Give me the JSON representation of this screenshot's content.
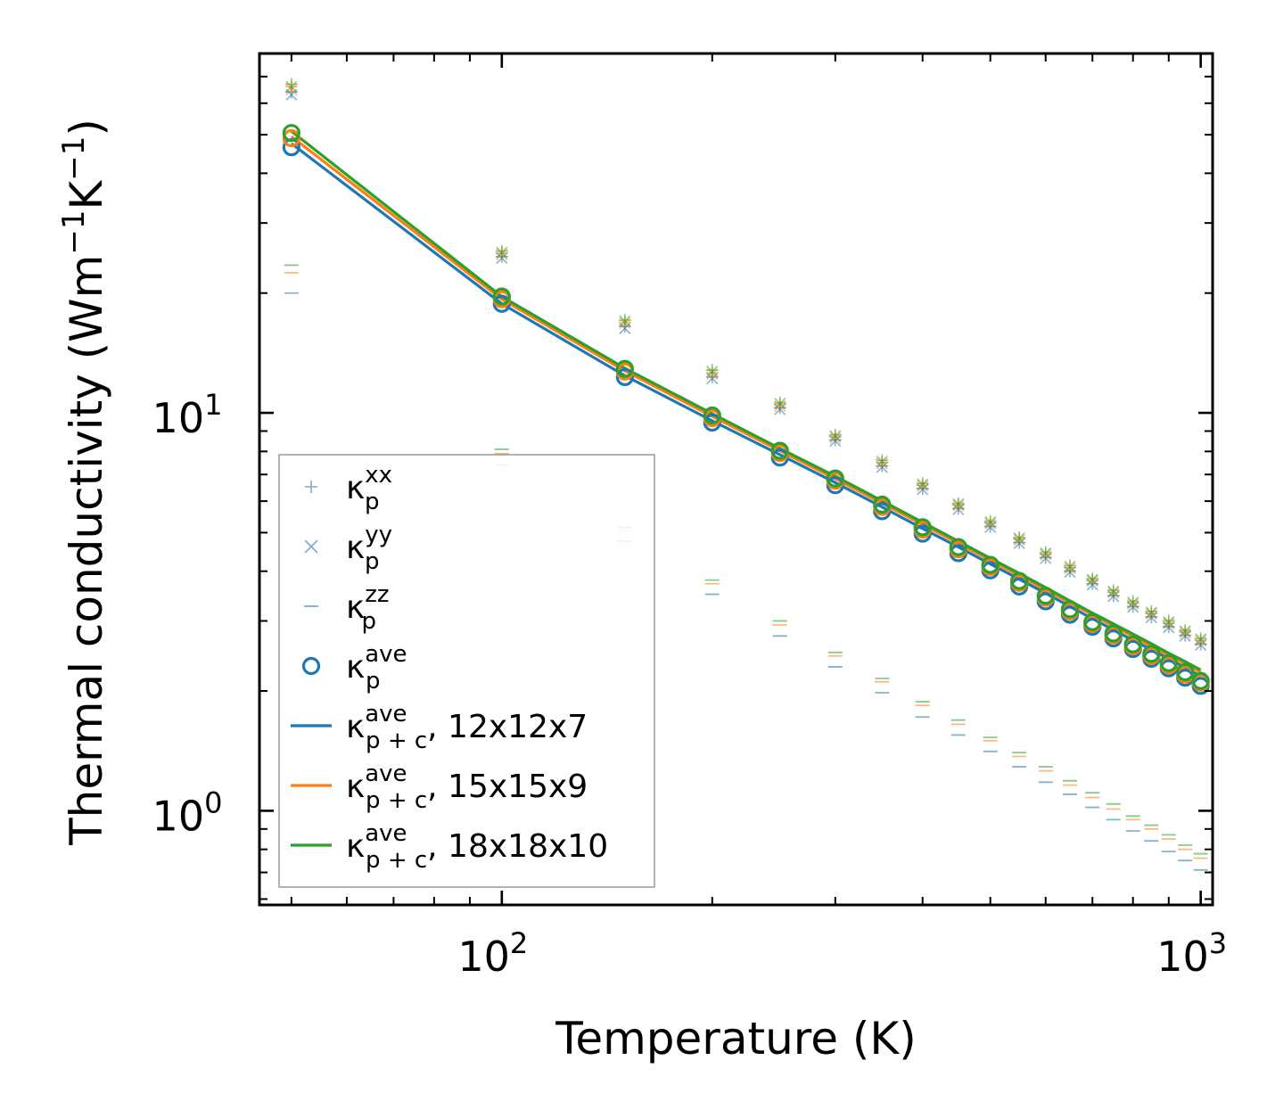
{
  "chart_data": {
    "type": "scatter",
    "xscale": "log",
    "yscale": "log",
    "xlim": [
      45,
      1040
    ],
    "ylim": [
      0.58,
      80
    ],
    "xlabel": "Temperature (K)",
    "ylabel": {
      "base": "Thermal conductivity (Wm",
      "exp1": "−1",
      "mid": "K",
      "exp2": "−1",
      "end": ")"
    },
    "x_major_ticks": [
      {
        "value": 100,
        "base": "10",
        "exp": "2"
      },
      {
        "value": 1000,
        "base": "10",
        "exp": "3"
      }
    ],
    "y_major_ticks": [
      {
        "value": 1,
        "base": "10",
        "exp": "0"
      },
      {
        "value": 10,
        "base": "10",
        "exp": "1"
      }
    ],
    "x": [
      50,
      100,
      150,
      200,
      250,
      300,
      350,
      400,
      450,
      500,
      550,
      600,
      650,
      700,
      750,
      800,
      850,
      900,
      950,
      1000
    ],
    "colors": {
      "blue": "#1f77b4",
      "orange": "#ff7f0e",
      "green": "#2ca02c",
      "frame": "#000000"
    },
    "series": [
      {
        "name": "kxx 12x12x7",
        "role": "kxx",
        "color": "#1f77b4",
        "values": [
          64,
          24.7,
          16.5,
          12.3,
          10.3,
          8.55,
          7.35,
          6.45,
          5.75,
          5.18,
          4.72,
          4.33,
          4.0,
          3.72,
          3.47,
          3.26,
          3.07,
          2.9,
          2.76,
          2.62
        ]
      },
      {
        "name": "kxx 15x15x9",
        "role": "kxx",
        "color": "#ff7f0e",
        "values": [
          66,
          25.2,
          16.9,
          12.6,
          10.5,
          8.7,
          7.5,
          6.58,
          5.86,
          5.28,
          4.81,
          4.41,
          4.08,
          3.79,
          3.54,
          3.32,
          3.13,
          2.96,
          2.81,
          2.68
        ]
      },
      {
        "name": "kxx 18x18x10",
        "role": "kxx",
        "color": "#2ca02c",
        "values": [
          67,
          25.5,
          17.1,
          12.8,
          10.6,
          8.8,
          7.6,
          6.65,
          5.92,
          5.34,
          4.86,
          4.46,
          4.13,
          3.83,
          3.58,
          3.36,
          3.17,
          3.0,
          2.84,
          2.71
        ]
      },
      {
        "name": "kyy 12x12x7",
        "role": "kyy",
        "color": "#1f77b4",
        "values": [
          63,
          24.5,
          16.3,
          12.2,
          10.2,
          8.5,
          7.3,
          6.42,
          5.72,
          5.16,
          4.7,
          4.31,
          3.98,
          3.7,
          3.46,
          3.25,
          3.06,
          2.89,
          2.75,
          2.61
        ]
      },
      {
        "name": "kyy 15x15x9",
        "role": "kyy",
        "color": "#ff7f0e",
        "values": [
          65,
          25.0,
          16.8,
          12.5,
          10.4,
          8.65,
          7.45,
          6.55,
          5.84,
          5.26,
          4.79,
          4.4,
          4.06,
          3.78,
          3.53,
          3.31,
          3.12,
          2.95,
          2.8,
          2.67
        ]
      },
      {
        "name": "kyy 18x18x10",
        "role": "kyy",
        "color": "#2ca02c",
        "values": [
          66,
          25.3,
          17.0,
          12.7,
          10.55,
          8.75,
          7.55,
          6.62,
          5.9,
          5.32,
          4.84,
          4.44,
          4.11,
          3.81,
          3.56,
          3.34,
          3.15,
          2.98,
          2.83,
          2.7
        ]
      },
      {
        "name": "kzz 12x12x7",
        "role": "kzz",
        "color": "#1f77b4",
        "values": [
          20.0,
          7.4,
          4.75,
          3.5,
          2.75,
          2.3,
          1.98,
          1.72,
          1.55,
          1.41,
          1.29,
          1.18,
          1.1,
          1.02,
          0.95,
          0.89,
          0.84,
          0.79,
          0.75,
          0.71
        ]
      },
      {
        "name": "kzz 15x15x9",
        "role": "kzz",
        "color": "#ff7f0e",
        "values": [
          22.5,
          7.9,
          5.05,
          3.72,
          2.93,
          2.45,
          2.11,
          1.84,
          1.65,
          1.5,
          1.37,
          1.26,
          1.16,
          1.08,
          1.01,
          0.95,
          0.9,
          0.85,
          0.8,
          0.76
        ]
      },
      {
        "name": "kzz 18x18x10",
        "role": "kzz",
        "color": "#2ca02c",
        "values": [
          23.5,
          8.1,
          5.15,
          3.8,
          3.0,
          2.5,
          2.15,
          1.88,
          1.69,
          1.53,
          1.4,
          1.29,
          1.19,
          1.11,
          1.04,
          0.97,
          0.92,
          0.87,
          0.82,
          0.78
        ]
      },
      {
        "name": "kave 12x12x7",
        "role": "kave",
        "color": "#1f77b4",
        "values": [
          46.5,
          18.8,
          12.3,
          9.45,
          7.72,
          6.58,
          5.66,
          4.97,
          4.44,
          4.02,
          3.66,
          3.36,
          3.11,
          2.9,
          2.71,
          2.55,
          2.41,
          2.28,
          2.16,
          2.06
        ]
      },
      {
        "name": "kave 15x15x9",
        "role": "kave",
        "color": "#ff7f0e",
        "values": [
          49.0,
          19.3,
          12.7,
          9.7,
          7.92,
          6.75,
          5.8,
          5.09,
          4.54,
          4.1,
          3.74,
          3.43,
          3.17,
          2.95,
          2.76,
          2.59,
          2.45,
          2.32,
          2.2,
          2.1
        ]
      },
      {
        "name": "kave 18x18x10",
        "role": "kave",
        "color": "#2ca02c",
        "values": [
          50.5,
          19.6,
          12.9,
          9.85,
          8.03,
          6.84,
          5.88,
          5.16,
          4.6,
          4.15,
          3.78,
          3.47,
          3.21,
          2.98,
          2.79,
          2.62,
          2.48,
          2.35,
          2.23,
          2.12
        ]
      },
      {
        "name": "kp+c ave 12x12x7",
        "role": "line",
        "color": "#1f77b4",
        "values": [
          47.5,
          18.8,
          12.4,
          9.55,
          7.85,
          6.68,
          5.8,
          5.12,
          4.6,
          4.17,
          3.82,
          3.52,
          3.26,
          3.04,
          2.85,
          2.68,
          2.54,
          2.41,
          2.29,
          2.18
        ]
      },
      {
        "name": "kp+c ave 15x15x9",
        "role": "line",
        "color": "#ff7f0e",
        "values": [
          49.5,
          19.3,
          12.75,
          9.8,
          8.03,
          6.83,
          5.93,
          5.24,
          4.7,
          4.26,
          3.9,
          3.59,
          3.33,
          3.11,
          2.91,
          2.74,
          2.59,
          2.46,
          2.34,
          2.23
        ]
      },
      {
        "name": "kp+c ave 18x18x10",
        "role": "line",
        "color": "#2ca02c",
        "values": [
          51.0,
          19.6,
          12.95,
          9.95,
          8.14,
          6.93,
          6.01,
          5.31,
          4.76,
          4.31,
          3.95,
          3.64,
          3.37,
          3.14,
          2.95,
          2.78,
          2.63,
          2.49,
          2.37,
          2.26
        ]
      }
    ],
    "legend": {
      "placement": "lower-left",
      "entries": [
        {
          "marker": "plus",
          "color": "#1f77b4",
          "base": "κ",
          "sup": "xx",
          "sub": "p",
          "suffix": ""
        },
        {
          "marker": "x",
          "color": "#1f77b4",
          "base": "κ",
          "sup": "yy",
          "sub": "p",
          "suffix": ""
        },
        {
          "marker": "hline",
          "color": "#1f77b4",
          "base": "κ",
          "sup": "zz",
          "sub": "p",
          "suffix": ""
        },
        {
          "marker": "circle",
          "color": "#1f77b4",
          "base": "κ",
          "sup": "ave",
          "sub": "p",
          "suffix": ""
        },
        {
          "marker": "line",
          "color": "#1f77b4",
          "base": "κ",
          "sup": "ave",
          "sub": "p + c",
          "suffix": ", 12x12x7"
        },
        {
          "marker": "line",
          "color": "#ff7f0e",
          "base": "κ",
          "sup": "ave",
          "sub": "p + c",
          "suffix": ", 15x15x9"
        },
        {
          "marker": "line",
          "color": "#2ca02c",
          "base": "κ",
          "sup": "ave",
          "sub": "p + c",
          "suffix": ", 18x18x10"
        }
      ]
    }
  }
}
